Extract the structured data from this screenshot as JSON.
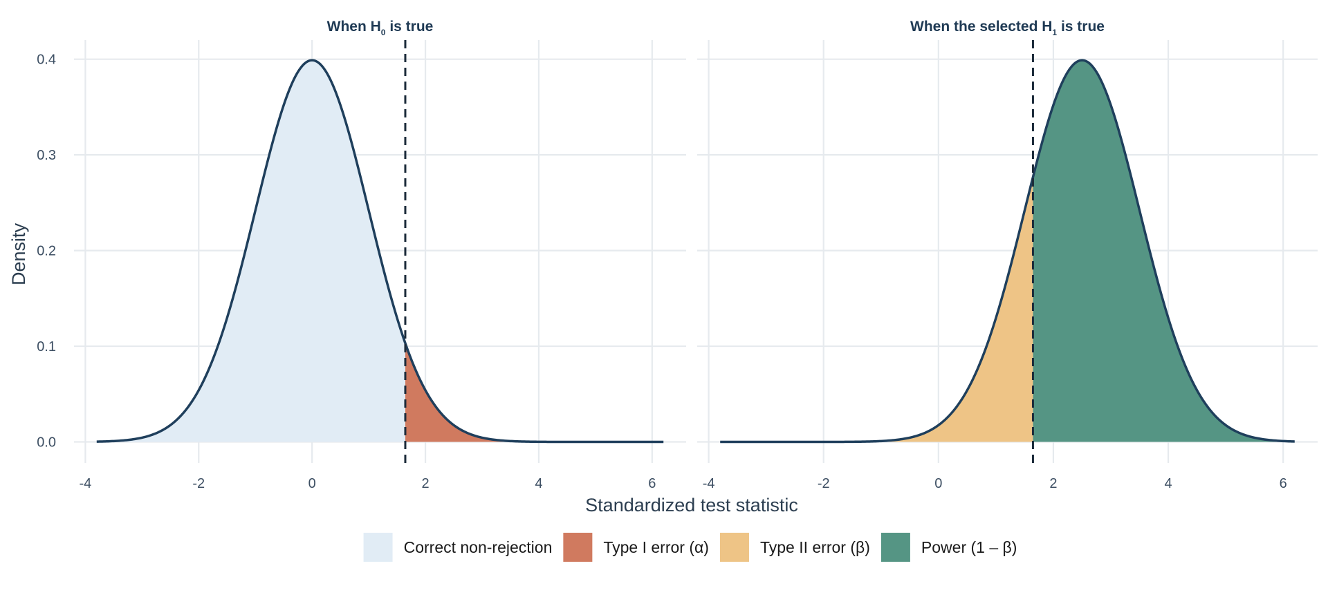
{
  "chart_data": [
    {
      "type": "area",
      "title": "When H",
      "title_sub": "0",
      "title_suffix": " is true",
      "distribution_mean": 0,
      "distribution_sd": 1,
      "critical_value": 1.645,
      "x_range": [
        -3.8,
        6.2
      ],
      "xlim": [
        -4.2,
        6.6
      ],
      "ylim": [
        -0.022,
        0.42
      ],
      "x_ticks": [
        -4,
        -2,
        0,
        2,
        4,
        6
      ],
      "y_ticks": [
        0.0,
        0.1,
        0.2,
        0.3,
        0.4
      ],
      "x_tick_labels": [
        "-4",
        "-2",
        "0",
        "2",
        "4",
        "6"
      ],
      "y_tick_labels": [
        "0.0",
        "0.1",
        "0.2",
        "0.3",
        "0.4"
      ],
      "regions": [
        {
          "name": "Correct non-rejection",
          "from": -3.8,
          "to": 1.645
        },
        {
          "name": "Type I error (α)",
          "from": 1.645,
          "to": 6.2
        }
      ]
    },
    {
      "type": "area",
      "title": "When the selected H",
      "title_sub": "1",
      "title_suffix": " is true",
      "distribution_mean": 2.5,
      "distribution_sd": 1,
      "critical_value": 1.645,
      "x_range": [
        -3.8,
        6.2
      ],
      "xlim": [
        -4.2,
        6.6
      ],
      "ylim": [
        -0.022,
        0.42
      ],
      "x_ticks": [
        -4,
        -2,
        0,
        2,
        4,
        6
      ],
      "y_ticks": [
        0.0,
        0.1,
        0.2,
        0.3,
        0.4
      ],
      "x_tick_labels": [
        "-4",
        "-2",
        "0",
        "2",
        "4",
        "6"
      ],
      "regions": [
        {
          "name": "Type II error (β)",
          "from": -3.8,
          "to": 1.645
        },
        {
          "name": "Power (1 – β)",
          "from": 1.645,
          "to": 6.2
        }
      ]
    }
  ],
  "axes": {
    "xlabel": "Standardized test statistic",
    "ylabel": "Density"
  },
  "legend": {
    "position": "bottom",
    "items": [
      {
        "label": "Correct non-rejection",
        "color": "#e1ecf5"
      },
      {
        "label": "Type I error (α)",
        "color": "#d07a5f"
      },
      {
        "label": "Type II error (β)",
        "color": "#eec486"
      },
      {
        "label": "Power (1 – β)",
        "color": "#559584"
      }
    ]
  },
  "colors": {
    "curve": "#1f3f5c",
    "grid": "#e6eaee",
    "critical_line": "#1c2b3a"
  }
}
